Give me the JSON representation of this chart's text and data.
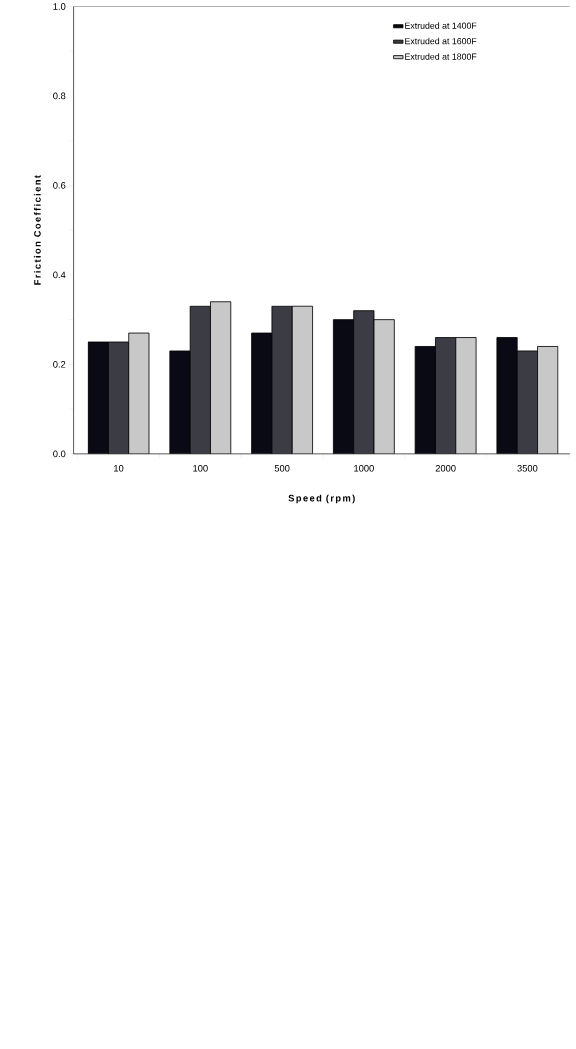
{
  "chart_data": {
    "type": "bar",
    "xlabel": "Speed (rpm)",
    "ylabel": "Friction Coefficient",
    "categories": [
      "10",
      "100",
      "500",
      "1000",
      "2000",
      "3500"
    ],
    "series": [
      {
        "name": "Extruded at 1400F",
        "color": "#0a0a14",
        "values": [
          0.25,
          0.23,
          0.27,
          0.3,
          0.24,
          0.26
        ]
      },
      {
        "name": "Extruded at 1600F",
        "color": "#3c3c44",
        "values": [
          0.25,
          0.33,
          0.33,
          0.32,
          0.26,
          0.23
        ]
      },
      {
        "name": "Extruded at 1800F",
        "color": "#c8c8c8",
        "values": [
          0.27,
          0.34,
          0.33,
          0.3,
          0.26,
          0.24
        ]
      }
    ],
    "ylim": [
      0,
      1
    ],
    "yticks": [
      {
        "value": 0,
        "label": "0.0"
      },
      {
        "value": 0.1,
        "label": null
      },
      {
        "value": 0.2,
        "label": "0.2"
      },
      {
        "value": 0.3,
        "label": null
      },
      {
        "value": 0.4,
        "label": "0.4"
      },
      {
        "value": 0.5,
        "label": null
      },
      {
        "value": 0.6,
        "label": "0.6"
      },
      {
        "value": 0.7,
        "label": null
      },
      {
        "value": 0.8,
        "label": "0.8"
      },
      {
        "value": 0.9,
        "label": null
      },
      {
        "value": 1,
        "label": "1.0"
      }
    ],
    "legend": "top right",
    "grid": false
  }
}
